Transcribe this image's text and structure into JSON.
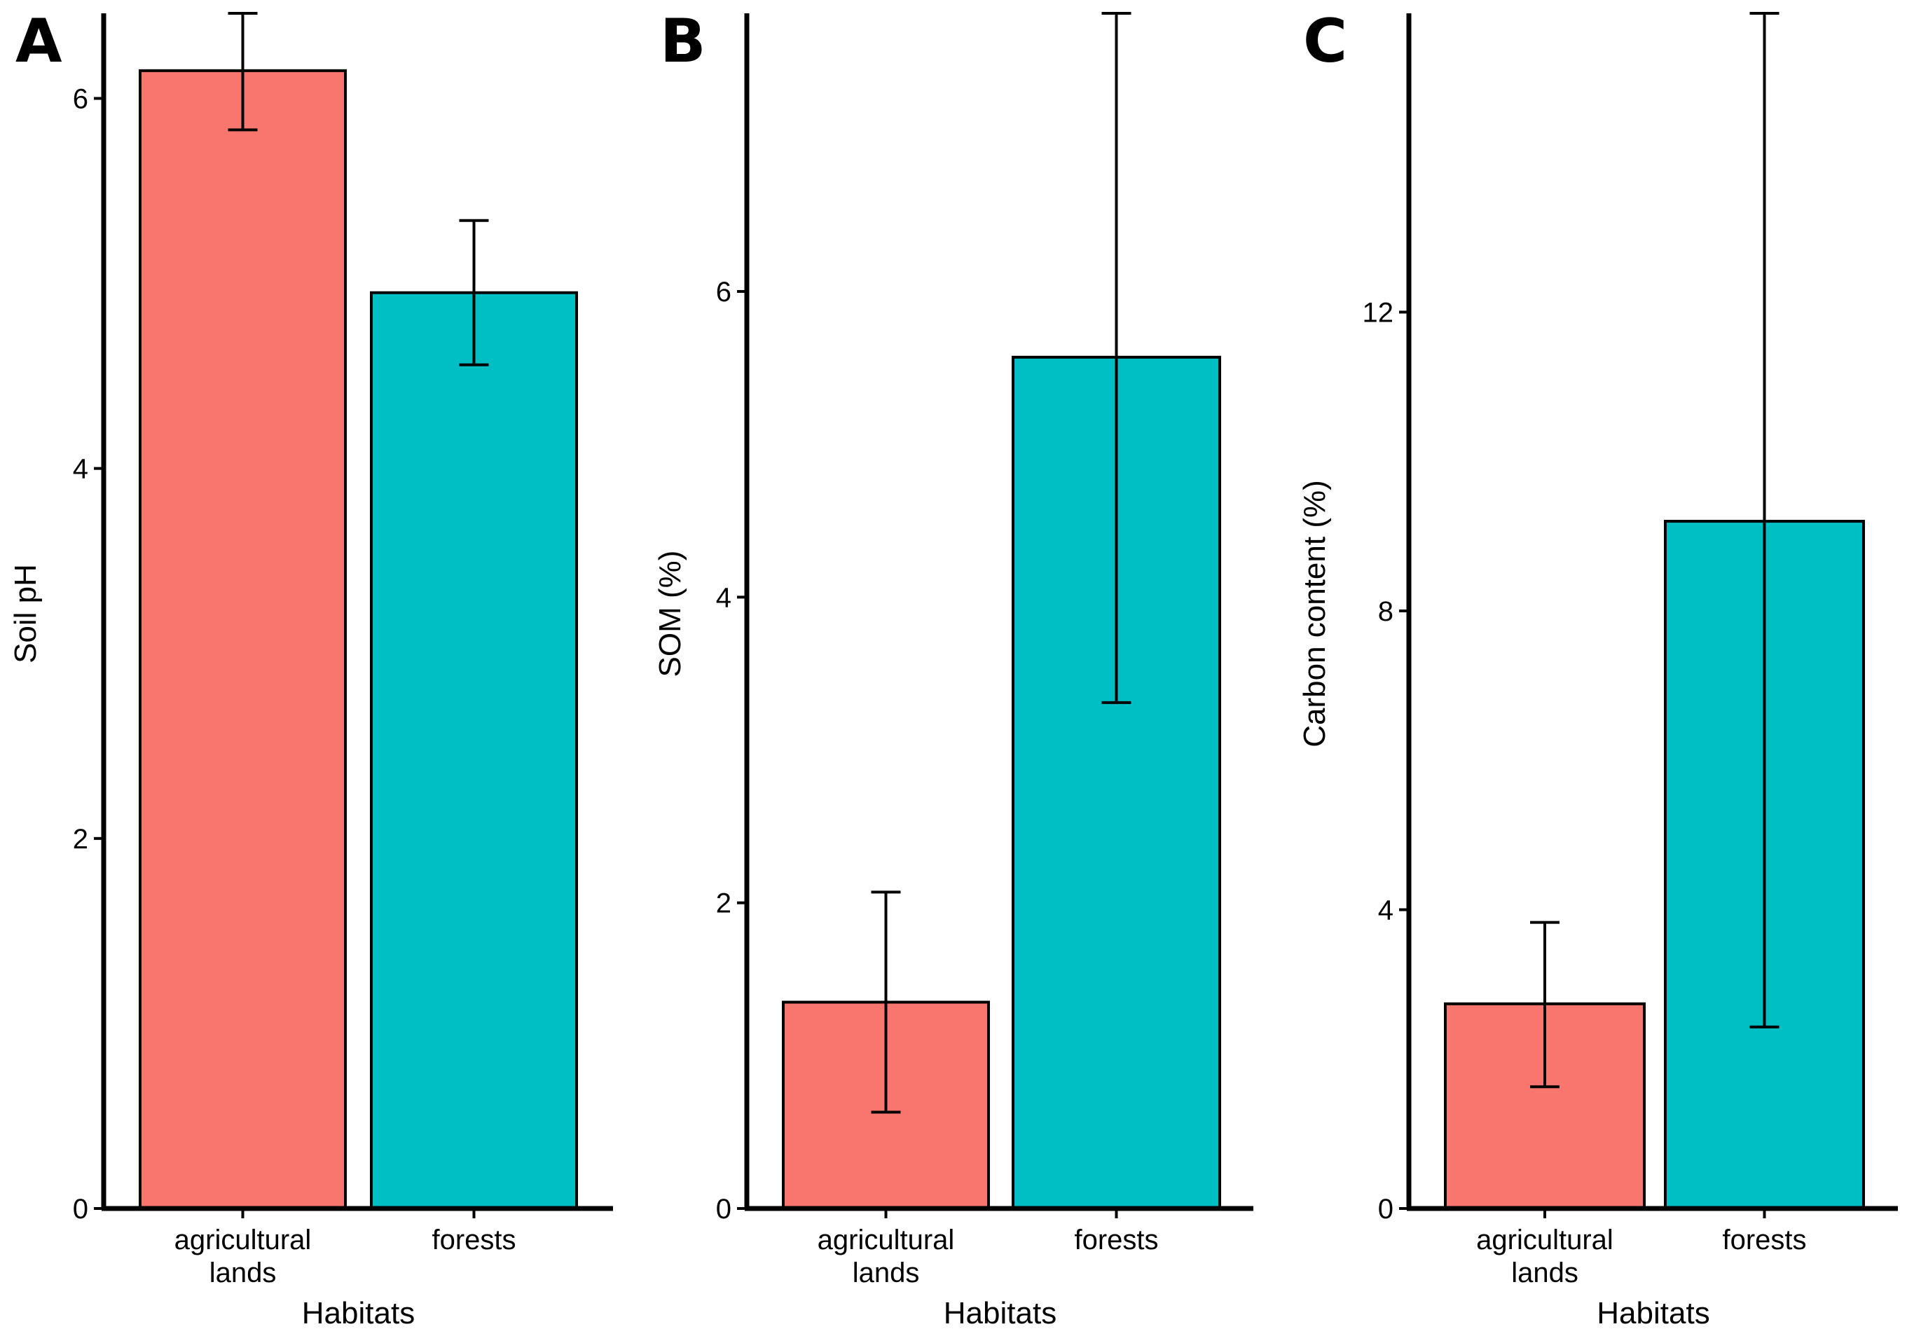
{
  "chart_data": [
    {
      "panel": "A",
      "type": "bar",
      "categories": [
        [
          "agricultural",
          "lands"
        ],
        [
          "forests"
        ]
      ],
      "values": [
        6.15,
        4.95
      ],
      "error_low": [
        5.83,
        4.56
      ],
      "error_high": [
        6.46,
        5.34
      ],
      "colors": [
        "#F8766D",
        "#00BFC4"
      ],
      "xlabel": "Habitats",
      "ylabel": "Soil pH",
      "ylim": [
        0,
        6.46
      ],
      "yticks": [
        0,
        2,
        4,
        6
      ]
    },
    {
      "panel": "B",
      "type": "bar",
      "categories": [
        [
          "agricultural",
          "lands"
        ],
        [
          "forests"
        ]
      ],
      "values": [
        1.35,
        5.57
      ],
      "error_low": [
        0.63,
        3.31
      ],
      "error_high": [
        2.07,
        7.82
      ],
      "colors": [
        "#F8766D",
        "#00BFC4"
      ],
      "xlabel": "Habitats",
      "ylabel": "SOM (%)",
      "ylim": [
        0,
        7.82
      ],
      "yticks": [
        0,
        2,
        4,
        6
      ]
    },
    {
      "panel": "C",
      "type": "bar",
      "categories": [
        [
          "agricultural",
          "lands"
        ],
        [
          "forests"
        ]
      ],
      "values": [
        2.74,
        9.2
      ],
      "error_low": [
        1.63,
        2.43
      ],
      "error_high": [
        3.83,
        16.0
      ],
      "colors": [
        "#F8766D",
        "#00BFC4"
      ],
      "xlabel": "Habitats",
      "ylabel": "Carbon content (%)",
      "ylim": [
        0,
        16.0
      ],
      "yticks": [
        0,
        4,
        8,
        12
      ]
    }
  ]
}
